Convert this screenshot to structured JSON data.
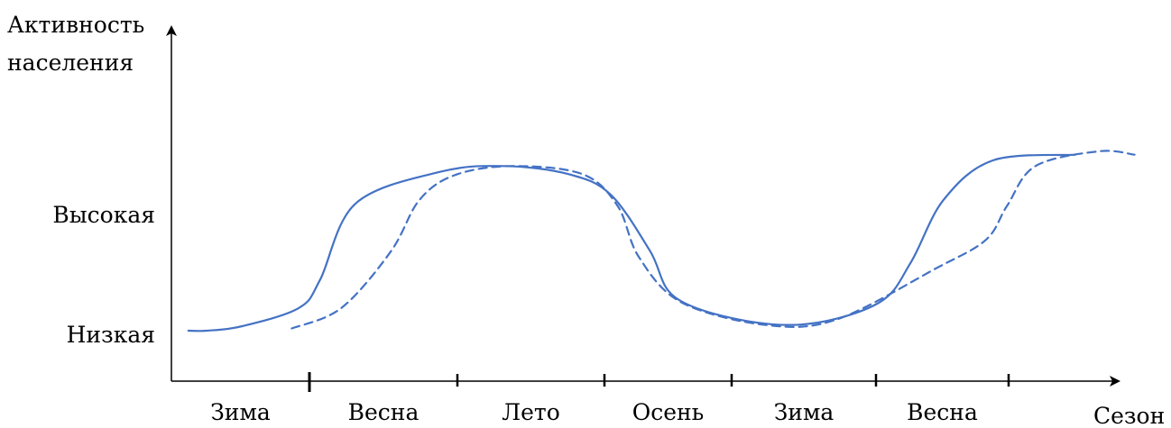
{
  "chart_data": {
    "type": "line",
    "ylabel": [
      "Активность",
      "населения"
    ],
    "xlabel": "Сезон",
    "y_levels": [
      "Высокая",
      "Низкая"
    ],
    "seasons": [
      "Зима",
      "Весна",
      "Лето",
      "Осень",
      "Зима",
      "Весна"
    ],
    "season_boundaries": [
      0,
      1,
      2,
      3,
      4,
      5,
      6
    ],
    "y_scale": "activity level: 0 = Низкая, 1 = Высокая",
    "series": [
      {
        "style": "solid",
        "points": [
          [
            0.12,
            0.0
          ],
          [
            0.25,
            0.0
          ],
          [
            0.5,
            0.04
          ],
          [
            0.9,
            0.2
          ],
          [
            1.05,
            0.45
          ],
          [
            1.3,
            1.12
          ],
          [
            1.9,
            1.4
          ],
          [
            2.35,
            1.45
          ],
          [
            2.8,
            1.38
          ],
          [
            3.1,
            1.2
          ],
          [
            3.38,
            0.7
          ],
          [
            3.55,
            0.3
          ],
          [
            4.0,
            0.1
          ],
          [
            4.5,
            0.06
          ],
          [
            5.0,
            0.25
          ],
          [
            5.22,
            0.6
          ],
          [
            5.45,
            1.15
          ],
          [
            5.8,
            1.5
          ],
          [
            6.38,
            1.55
          ]
        ]
      },
      {
        "style": "dashed",
        "points": [
          [
            0.85,
            0.02
          ],
          [
            1.2,
            0.2
          ],
          [
            1.55,
            0.7
          ],
          [
            1.75,
            1.15
          ],
          [
            2.0,
            1.37
          ],
          [
            2.4,
            1.45
          ],
          [
            2.9,
            1.38
          ],
          [
            3.15,
            1.1
          ],
          [
            3.3,
            0.65
          ],
          [
            3.6,
            0.25
          ],
          [
            4.2,
            0.05
          ],
          [
            4.7,
            0.1
          ],
          [
            5.4,
            0.55
          ],
          [
            5.75,
            0.8
          ],
          [
            5.9,
            1.1
          ],
          [
            6.1,
            1.45
          ],
          [
            6.55,
            1.58
          ],
          [
            6.8,
            1.55
          ]
        ]
      }
    ],
    "colors": {
      "series": "#4472c4",
      "axes": "#000000"
    }
  }
}
